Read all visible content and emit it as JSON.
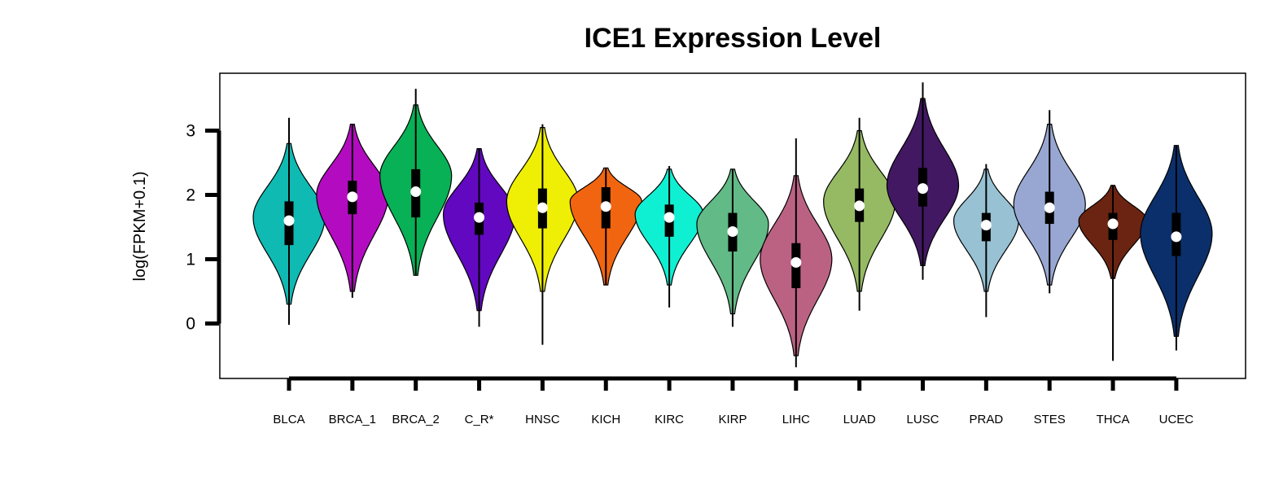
{
  "chart_data": {
    "type": "violin",
    "title": "ICE1 Expression Level",
    "xlabel": "",
    "ylabel": "log(FPKM+0.1)",
    "ylim": [
      -0.85,
      3.9
    ],
    "yticks": [
      0,
      1,
      2,
      3
    ],
    "grid": false,
    "legend": "none",
    "categories": [
      "BLCA",
      "BRCA_1",
      "BRCA_2",
      "C_R*",
      "HNSC",
      "KICH",
      "KIRC",
      "KIRP",
      "LIHC",
      "LUAD",
      "LUSC",
      "PRAD",
      "STES",
      "THCA",
      "UCEC"
    ],
    "series": [
      {
        "category": "BLCA",
        "color": "#0fbab3",
        "min": -0.02,
        "max": 3.2,
        "q1": 1.22,
        "median": 1.6,
        "q3": 1.9,
        "mode": 1.65,
        "violin_min": 0.3,
        "violin_max": 2.8,
        "half_width": 0.42
      },
      {
        "category": "BRCA_1",
        "color": "#b30cc0",
        "min": 0.4,
        "max": 3.1,
        "q1": 1.7,
        "median": 1.97,
        "q3": 2.22,
        "mode": 2.0,
        "violin_min": 0.5,
        "violin_max": 3.1,
        "half_width": 0.42
      },
      {
        "category": "BRCA_2",
        "color": "#08b156",
        "min": 0.75,
        "max": 3.65,
        "q1": 1.65,
        "median": 2.05,
        "q3": 2.4,
        "mode": 2.3,
        "violin_min": 0.75,
        "violin_max": 3.4,
        "half_width": 0.42
      },
      {
        "category": "C_R*",
        "color": "#6108c0",
        "min": -0.05,
        "max": 2.72,
        "q1": 1.38,
        "median": 1.65,
        "q3": 1.88,
        "mode": 1.7,
        "violin_min": 0.2,
        "violin_max": 2.72,
        "half_width": 0.42
      },
      {
        "category": "HNSC",
        "color": "#efef05",
        "min": -0.33,
        "max": 3.1,
        "q1": 1.48,
        "median": 1.8,
        "q3": 2.1,
        "mode": 1.9,
        "violin_min": 0.5,
        "violin_max": 3.05,
        "half_width": 0.42
      },
      {
        "category": "KICH",
        "color": "#f26510",
        "min": 0.6,
        "max": 2.42,
        "q1": 1.48,
        "median": 1.82,
        "q3": 2.12,
        "mode": 1.9,
        "violin_min": 0.6,
        "violin_max": 2.42,
        "half_width": 0.42
      },
      {
        "category": "KIRC",
        "color": "#0ff0d2",
        "min": 0.25,
        "max": 2.45,
        "q1": 1.35,
        "median": 1.65,
        "q3": 1.85,
        "mode": 1.7,
        "violin_min": 0.6,
        "violin_max": 2.4,
        "half_width": 0.4
      },
      {
        "category": "KIRP",
        "color": "#62ba86",
        "min": -0.05,
        "max": 2.4,
        "q1": 1.12,
        "median": 1.43,
        "q3": 1.72,
        "mode": 1.55,
        "violin_min": 0.15,
        "violin_max": 2.4,
        "half_width": 0.42
      },
      {
        "category": "LIHC",
        "color": "#bb6282",
        "min": -0.68,
        "max": 2.88,
        "q1": 0.55,
        "median": 0.95,
        "q3": 1.25,
        "mode": 1.0,
        "violin_min": -0.5,
        "violin_max": 2.3,
        "half_width": 0.42
      },
      {
        "category": "LUAD",
        "color": "#96ba63",
        "min": 0.2,
        "max": 3.2,
        "q1": 1.58,
        "median": 1.83,
        "q3": 2.1,
        "mode": 1.9,
        "violin_min": 0.5,
        "violin_max": 3.0,
        "half_width": 0.42
      },
      {
        "category": "LUSC",
        "color": "#421862",
        "min": 0.68,
        "max": 3.75,
        "q1": 1.82,
        "median": 2.1,
        "q3": 2.42,
        "mode": 2.15,
        "violin_min": 0.9,
        "violin_max": 3.5,
        "half_width": 0.42
      },
      {
        "category": "PRAD",
        "color": "#98c2d3",
        "min": 0.1,
        "max": 2.48,
        "q1": 1.28,
        "median": 1.53,
        "q3": 1.72,
        "mode": 1.6,
        "violin_min": 0.5,
        "violin_max": 2.4,
        "half_width": 0.38
      },
      {
        "category": "STES",
        "color": "#98a7d2",
        "min": 0.47,
        "max": 3.32,
        "q1": 1.55,
        "median": 1.8,
        "q3": 2.05,
        "mode": 1.85,
        "violin_min": 0.6,
        "violin_max": 3.1,
        "half_width": 0.42
      },
      {
        "category": "THCA",
        "color": "#6b2411",
        "min": -0.58,
        "max": 2.15,
        "q1": 1.3,
        "median": 1.55,
        "q3": 1.72,
        "mode": 1.6,
        "violin_min": 0.7,
        "violin_max": 2.15,
        "half_width": 0.4
      },
      {
        "category": "UCEC",
        "color": "#0b2f6b",
        "min": -0.42,
        "max": 2.77,
        "q1": 1.05,
        "median": 1.35,
        "q3": 1.72,
        "mode": 1.4,
        "violin_min": -0.2,
        "violin_max": 2.77,
        "half_width": 0.42
      }
    ]
  }
}
